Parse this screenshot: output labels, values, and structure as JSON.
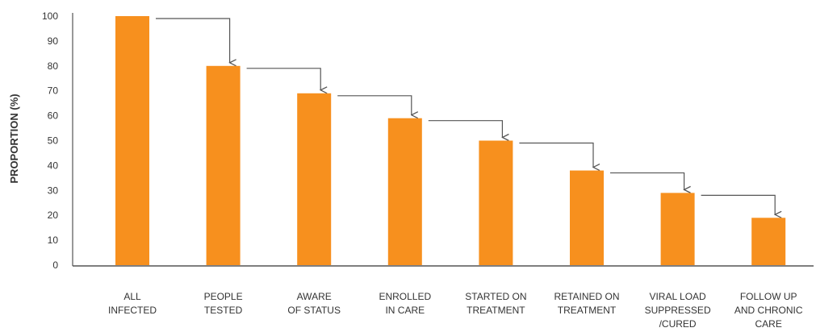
{
  "chart_data": {
    "type": "bar",
    "title": "",
    "xlabel": "",
    "ylabel": "PROPORTION (%)",
    "ylim": [
      0,
      100
    ],
    "yticks": [
      0,
      10,
      20,
      30,
      40,
      50,
      60,
      70,
      80,
      90,
      100
    ],
    "grid": false,
    "legend": "none",
    "bar_color": "#f7901e",
    "categories": [
      [
        "ALL",
        "INFECTED"
      ],
      [
        "PEOPLE",
        "TESTED"
      ],
      [
        "AWARE",
        "OF STATUS"
      ],
      [
        "ENROLLED",
        "IN CARE"
      ],
      [
        "STARTED ON",
        "TREATMENT"
      ],
      [
        "RETAINED ON",
        "TREATMENT"
      ],
      [
        "VIRAL LOAD",
        "SUPPRESSED",
        "/CURED"
      ],
      [
        "FOLLOW UP",
        "AND CHRONIC",
        "CARE"
      ]
    ],
    "values": [
      100,
      80,
      69,
      59,
      50,
      38,
      29,
      19
    ],
    "annotations": "arrows connect each bar to the next"
  }
}
